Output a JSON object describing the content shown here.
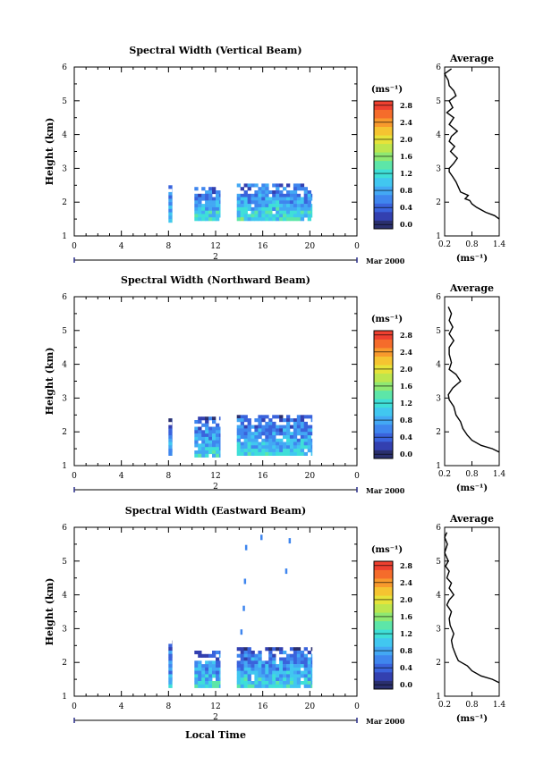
{
  "colors": {
    "colormap": [
      "#2a2f6e",
      "#3340b0",
      "#3a63dc",
      "#3f86ee",
      "#43a8f4",
      "#41c7f0",
      "#3fdfd8",
      "#5de6a8",
      "#8fe872",
      "#bde64e",
      "#e6e33a",
      "#f5c431",
      "#f89a2d",
      "#f56c2b",
      "#ee4030"
    ],
    "line": "#000000",
    "axis_end_marker": "#2a2f8a"
  },
  "xlabel": "Local Time",
  "date_label": "Mar 2000",
  "day_label": "2",
  "colorbar_unit": "(ms⁻¹)",
  "chart_data": [
    {
      "type": "heatmap",
      "title": "Spectral Width (Vertical Beam)",
      "ylabel": "Height (km)",
      "xlim": [
        0,
        24
      ],
      "ylim": [
        1,
        6
      ],
      "xticks": [
        "0",
        "4",
        "8",
        "12",
        "16",
        "20",
        "0"
      ],
      "yticks": [
        "1",
        "2",
        "3",
        "4",
        "5",
        "6"
      ],
      "colorbar": {
        "ticks": [
          "0.0",
          "0.4",
          "0.8",
          "1.2",
          "1.6",
          "2.0",
          "2.4",
          "2.8"
        ],
        "range": [
          0,
          3.0
        ]
      },
      "data_blocks": [
        {
          "x": [
            8.0,
            8.3
          ],
          "y": [
            1.45,
            2.5
          ],
          "mean_width": 0.8
        },
        {
          "x": [
            10.2,
            12.4
          ],
          "y": [
            1.45,
            2.45
          ],
          "mean_width": 0.9
        },
        {
          "x": [
            13.8,
            20.2
          ],
          "y": [
            1.45,
            2.55
          ],
          "mean_width": 0.9
        }
      ],
      "average": {
        "title": "Average",
        "xlabel": "(ms⁻¹)",
        "xticks": [
          "0.2",
          "0.8",
          "1.4"
        ],
        "xlim": [
          0.2,
          1.4
        ],
        "ylim": [
          1,
          6
        ],
        "yticks": [
          "1",
          "2",
          "3",
          "4",
          "5",
          "6"
        ],
        "profile": [
          [
            1.4,
            1.5
          ],
          [
            1.3,
            1.6
          ],
          [
            1.1,
            1.7
          ],
          [
            0.9,
            1.85
          ],
          [
            0.8,
            1.95
          ],
          [
            0.75,
            2.05
          ],
          [
            0.65,
            2.1
          ],
          [
            0.72,
            2.2
          ],
          [
            0.55,
            2.3
          ],
          [
            0.5,
            2.45
          ],
          [
            0.45,
            2.6
          ],
          [
            0.38,
            2.75
          ],
          [
            0.3,
            2.9
          ],
          [
            0.3,
            3.0
          ],
          [
            0.4,
            3.15
          ],
          [
            0.48,
            3.3
          ],
          [
            0.33,
            3.5
          ],
          [
            0.42,
            3.65
          ],
          [
            0.3,
            3.8
          ],
          [
            0.35,
            3.95
          ],
          [
            0.48,
            4.1
          ],
          [
            0.3,
            4.3
          ],
          [
            0.4,
            4.5
          ],
          [
            0.25,
            4.65
          ],
          [
            0.38,
            4.8
          ],
          [
            0.3,
            5.0
          ],
          [
            0.45,
            5.15
          ],
          [
            0.4,
            5.3
          ],
          [
            0.3,
            5.45
          ],
          [
            0.28,
            5.6
          ],
          [
            0.2,
            5.8
          ],
          [
            0.35,
            5.95
          ]
        ]
      }
    },
    {
      "type": "heatmap",
      "title": "Spectral Width (Northward Beam)",
      "ylabel": "Height (km)",
      "xlim": [
        0,
        24
      ],
      "ylim": [
        1,
        6
      ],
      "xticks": [
        "0",
        "4",
        "8",
        "12",
        "16",
        "20",
        "0"
      ],
      "yticks": [
        "1",
        "2",
        "3",
        "4",
        "5",
        "6"
      ],
      "colorbar": {
        "ticks": [
          "0.0",
          "0.4",
          "0.8",
          "1.2",
          "1.6",
          "2.0",
          "2.4",
          "2.8"
        ],
        "range": [
          0,
          3.0
        ]
      },
      "data_blocks": [
        {
          "x": [
            8.0,
            8.3
          ],
          "y": [
            1.35,
            2.4
          ],
          "mean_width": 0.7
        },
        {
          "x": [
            10.2,
            12.4
          ],
          "y": [
            1.35,
            2.45
          ],
          "mean_width": 0.8
        },
        {
          "x": [
            13.8,
            20.2
          ],
          "y": [
            1.35,
            2.5
          ],
          "mean_width": 0.8
        }
      ],
      "average": {
        "title": "Average",
        "xlabel": "(ms⁻¹)",
        "xticks": [
          "0.2",
          "0.8",
          "1.4"
        ],
        "xlim": [
          0.2,
          1.4
        ],
        "ylim": [
          1,
          6
        ],
        "yticks": [
          "1",
          "2",
          "3",
          "4",
          "5",
          "6"
        ],
        "profile": [
          [
            1.4,
            1.4
          ],
          [
            1.25,
            1.5
          ],
          [
            1.0,
            1.6
          ],
          [
            0.8,
            1.75
          ],
          [
            0.7,
            1.9
          ],
          [
            0.6,
            2.1
          ],
          [
            0.55,
            2.3
          ],
          [
            0.45,
            2.5
          ],
          [
            0.4,
            2.75
          ],
          [
            0.3,
            2.95
          ],
          [
            0.28,
            3.1
          ],
          [
            0.38,
            3.3
          ],
          [
            0.55,
            3.5
          ],
          [
            0.45,
            3.7
          ],
          [
            0.3,
            3.85
          ],
          [
            0.35,
            4.05
          ],
          [
            0.3,
            4.3
          ],
          [
            0.3,
            4.5
          ],
          [
            0.4,
            4.7
          ],
          [
            0.3,
            4.9
          ],
          [
            0.38,
            5.1
          ],
          [
            0.3,
            5.3
          ],
          [
            0.35,
            5.5
          ],
          [
            0.28,
            5.7
          ]
        ]
      }
    },
    {
      "type": "heatmap",
      "title": "Spectral Width (Eastward Beam)",
      "ylabel": "Height (km)",
      "xlim": [
        0,
        24
      ],
      "ylim": [
        1,
        6
      ],
      "xticks": [
        "0",
        "4",
        "8",
        "12",
        "16",
        "20",
        "0"
      ],
      "yticks": [
        "1",
        "2",
        "3",
        "4",
        "5",
        "6"
      ],
      "colorbar": {
        "ticks": [
          "0.0",
          "0.4",
          "0.8",
          "1.2",
          "1.6",
          "2.0",
          "2.4",
          "2.8"
        ],
        "range": [
          0,
          3.0
        ]
      },
      "data_blocks": [
        {
          "x": [
            8.0,
            8.3
          ],
          "y": [
            1.35,
            2.65
          ],
          "mean_width": 0.7
        },
        {
          "x": [
            10.2,
            12.4
          ],
          "y": [
            1.35,
            2.35
          ],
          "mean_width": 0.8
        },
        {
          "x": [
            13.8,
            20.2
          ],
          "y": [
            1.35,
            2.45
          ],
          "mean_width": 0.8
        }
      ],
      "scattered_points": [
        [
          14.1,
          2.9
        ],
        [
          14.3,
          3.6
        ],
        [
          14.4,
          4.4
        ],
        [
          14.5,
          5.4
        ],
        [
          15.8,
          5.7
        ],
        [
          17.9,
          4.7
        ],
        [
          18.2,
          5.6
        ]
      ],
      "average": {
        "title": "Average",
        "xlabel": "(ms⁻¹)",
        "xticks": [
          "0.2",
          "0.8",
          "1.4"
        ],
        "xlim": [
          0.2,
          1.4
        ],
        "ylim": [
          1,
          6
        ],
        "yticks": [
          "1",
          "2",
          "3",
          "4",
          "5",
          "6"
        ],
        "profile": [
          [
            1.4,
            1.4
          ],
          [
            1.25,
            1.5
          ],
          [
            1.0,
            1.6
          ],
          [
            0.8,
            1.75
          ],
          [
            0.7,
            1.9
          ],
          [
            0.5,
            2.05
          ],
          [
            0.45,
            2.2
          ],
          [
            0.38,
            2.45
          ],
          [
            0.35,
            2.65
          ],
          [
            0.4,
            2.85
          ],
          [
            0.32,
            3.1
          ],
          [
            0.3,
            3.3
          ],
          [
            0.35,
            3.5
          ],
          [
            0.25,
            3.7
          ],
          [
            0.3,
            3.85
          ],
          [
            0.4,
            4.0
          ],
          [
            0.3,
            4.2
          ],
          [
            0.35,
            4.35
          ],
          [
            0.25,
            4.5
          ],
          [
            0.3,
            4.7
          ],
          [
            0.22,
            4.85
          ],
          [
            0.28,
            5.0
          ],
          [
            0.2,
            5.25
          ],
          [
            0.26,
            5.5
          ],
          [
            0.2,
            5.7
          ],
          [
            0.25,
            5.85
          ]
        ]
      }
    }
  ]
}
